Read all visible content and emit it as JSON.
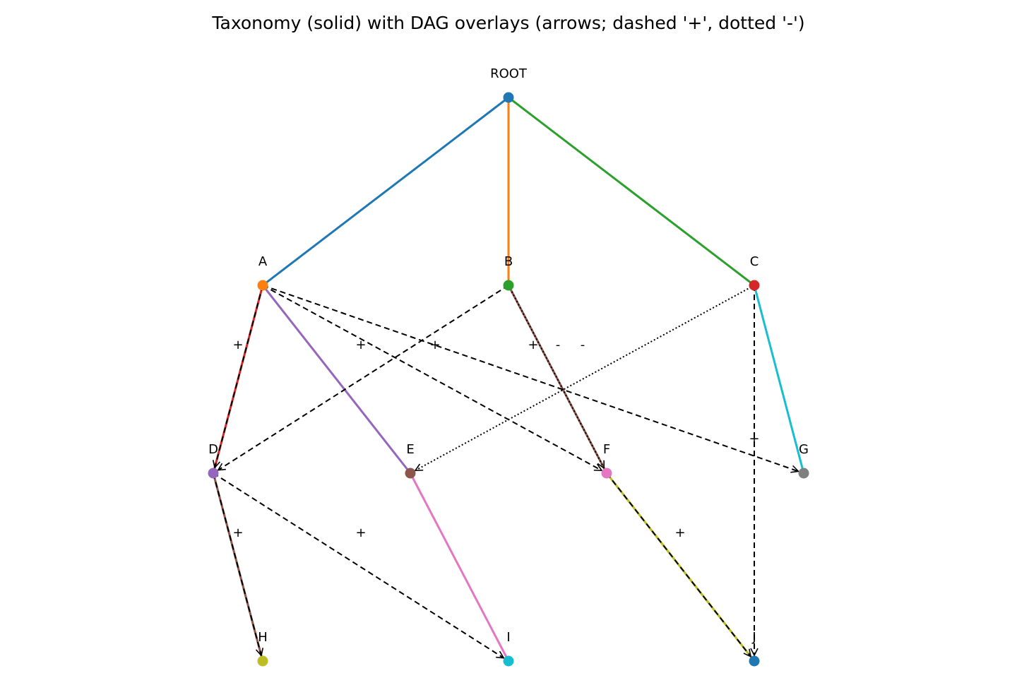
{
  "title": "Taxonomy (solid) with DAG overlays (arrows; dashed '+', dotted '-')",
  "nodes": [
    {
      "id": "ROOT",
      "label": "ROOT",
      "color": "#1f77b4"
    },
    {
      "id": "A",
      "label": "A",
      "color": "#ff7f0e"
    },
    {
      "id": "B",
      "label": "B",
      "color": "#2ca02c"
    },
    {
      "id": "C",
      "label": "C",
      "color": "#d62728"
    },
    {
      "id": "D",
      "label": "D",
      "color": "#9467bd"
    },
    {
      "id": "E",
      "label": "E",
      "color": "#8c564b"
    },
    {
      "id": "F",
      "label": "F",
      "color": "#e377c2"
    },
    {
      "id": "G",
      "label": "G",
      "color": "#7f7f7f"
    },
    {
      "id": "H",
      "label": "H",
      "color": "#bcbd22"
    },
    {
      "id": "I",
      "label": "I",
      "color": "#17becf"
    },
    {
      "id": "J",
      "label": "J",
      "color": "#1f77b4"
    }
  ],
  "tree_edges": [
    {
      "from": "ROOT",
      "to": "A",
      "color": "#1f77b4"
    },
    {
      "from": "ROOT",
      "to": "B",
      "color": "#ff7f0e"
    },
    {
      "from": "ROOT",
      "to": "C",
      "color": "#2ca02c"
    },
    {
      "from": "A",
      "to": "D",
      "color": "#d62728"
    },
    {
      "from": "A",
      "to": "E",
      "color": "#9467bd"
    },
    {
      "from": "B",
      "to": "F",
      "color": "#8c564b"
    },
    {
      "from": "C",
      "to": "G",
      "color": "#17becf"
    },
    {
      "from": "D",
      "to": "H",
      "color": "#8c564b"
    },
    {
      "from": "E",
      "to": "I",
      "color": "#e377c2"
    },
    {
      "from": "F",
      "to": "J",
      "color": "#bcbd22"
    }
  ],
  "dag_edges": [
    {
      "from": "A",
      "to": "D",
      "sign": "+"
    },
    {
      "from": "A",
      "to": "F",
      "sign": "+"
    },
    {
      "from": "A",
      "to": "G",
      "sign": "+"
    },
    {
      "from": "B",
      "to": "D",
      "sign": "+"
    },
    {
      "from": "B",
      "to": "F",
      "sign": "-"
    },
    {
      "from": "C",
      "to": "E",
      "sign": "-"
    },
    {
      "from": "C",
      "to": "J",
      "sign": "+"
    },
    {
      "from": "D",
      "to": "H",
      "sign": "+"
    },
    {
      "from": "D",
      "to": "I",
      "sign": "+"
    },
    {
      "from": "F",
      "to": "J",
      "sign": "+"
    }
  ]
}
